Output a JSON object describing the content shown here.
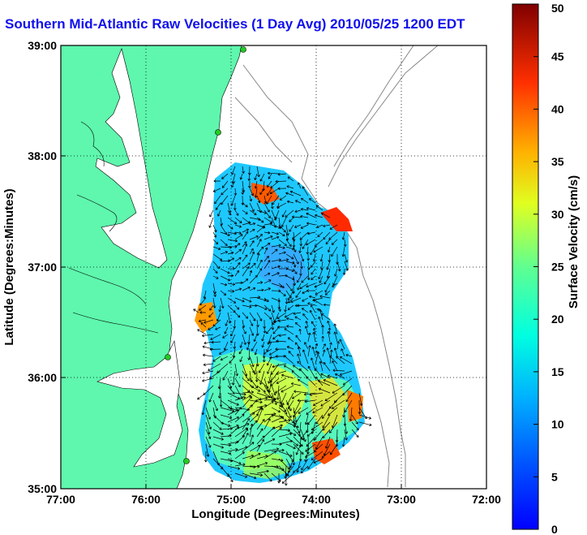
{
  "title": "Southern Mid-Atlantic Raw Velocities (1 Day Avg) 2010/05/25 1200 EDT",
  "map": {
    "xlabel": "Longitude (Degrees:Minutes)",
    "ylabel": "Latitude (Degrees:Minutes)",
    "x_ticks": [
      "77:00",
      "76:00",
      "75:00",
      "74:00",
      "73:00",
      "72:00"
    ],
    "y_ticks": [
      "39:00",
      "38:00",
      "37:00",
      "36:00",
      "35:00"
    ],
    "grid": "dotted"
  },
  "colorbar": {
    "label": "Surface Velocity (cm/s)",
    "ticks": [
      "50",
      "45",
      "40",
      "35",
      "30",
      "25",
      "20",
      "15",
      "10",
      "5",
      "0"
    ],
    "min": 0,
    "max": 50,
    "colormap": "jet"
  },
  "colors": {
    "land": "#5ef7ad",
    "title": "#1010ee",
    "water": "#ffffff",
    "bathymetry": "#888888"
  }
}
